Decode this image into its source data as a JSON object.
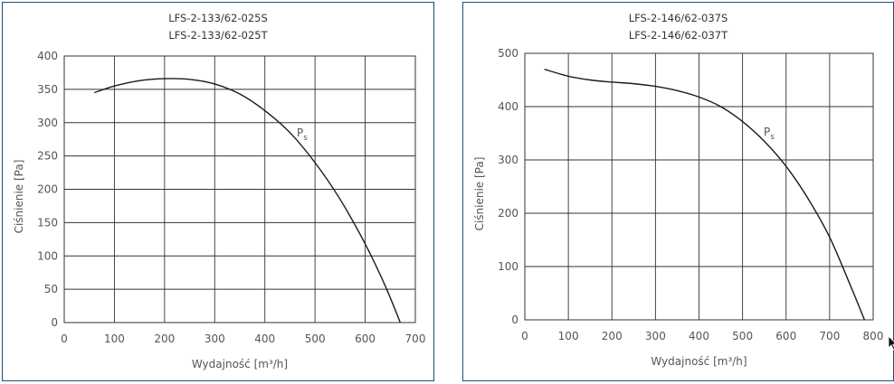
{
  "chart_data": [
    {
      "type": "line",
      "title_line1": "LFS-2-133/62-025S",
      "title_line2": "LFS-2-133/62-025T",
      "xlabel": "Wydajność [m³/h]",
      "ylabel": "Ciśnienie [Pa]",
      "xlim": [
        0,
        700
      ],
      "ylim": [
        0,
        400
      ],
      "xticks": [
        0,
        100,
        200,
        300,
        400,
        500,
        600,
        700
      ],
      "yticks": [
        0,
        50,
        100,
        150,
        200,
        250,
        300,
        350,
        400
      ],
      "grid": true,
      "series": [
        {
          "name": "Ps",
          "x": [
            60,
            100,
            150,
            200,
            250,
            300,
            350,
            400,
            450,
            500,
            550,
            600,
            640,
            670
          ],
          "y": [
            345,
            355,
            363,
            366,
            365,
            358,
            343,
            318,
            285,
            240,
            185,
            118,
            55,
            0
          ]
        }
      ]
    },
    {
      "type": "line",
      "title_line1": "LFS-2-146/62-037S",
      "title_line2": "LFS-2-146/62-037T",
      "xlabel": "Wydajność [m³/h]",
      "ylabel": "Ciśnienie [Pa]",
      "xlim": [
        0,
        800
      ],
      "ylim": [
        0,
        500
      ],
      "xticks": [
        0,
        100,
        200,
        300,
        400,
        500,
        600,
        700,
        800
      ],
      "yticks": [
        0,
        100,
        200,
        300,
        400,
        500
      ],
      "grid": true,
      "series": [
        {
          "name": "Ps",
          "x": [
            45,
            100,
            150,
            200,
            250,
            300,
            350,
            400,
            450,
            500,
            550,
            600,
            650,
            700,
            750,
            780
          ],
          "y": [
            470,
            457,
            450,
            446,
            443,
            438,
            430,
            418,
            400,
            372,
            335,
            288,
            228,
            155,
            60,
            0
          ]
        }
      ]
    }
  ]
}
